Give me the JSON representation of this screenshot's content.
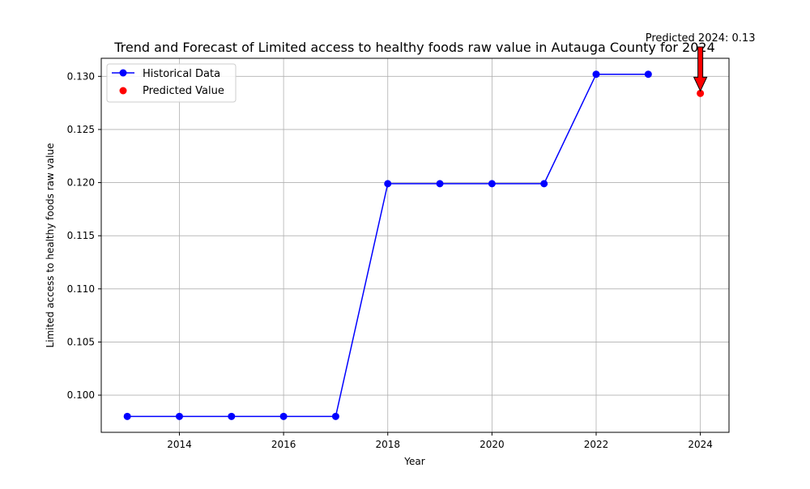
{
  "chart_data": {
    "type": "line",
    "title": "Trend and Forecast of Limited access to healthy foods raw value in Autauga County for 2024",
    "xlabel": "Year",
    "ylabel": "Limited access to healthy foods raw value",
    "xlim": [
      2012.5,
      2024.55
    ],
    "ylim": [
      0.0965,
      0.1317
    ],
    "x_ticks": [
      2014,
      2016,
      2018,
      2020,
      2022,
      2024
    ],
    "y_ticks": [
      0.1,
      0.105,
      0.11,
      0.115,
      0.12,
      0.125,
      0.13
    ],
    "x_tick_labels": [
      "2014",
      "2016",
      "2018",
      "2020",
      "2022",
      "2024"
    ],
    "y_tick_labels": [
      "0.100",
      "0.105",
      "0.110",
      "0.115",
      "0.120",
      "0.125",
      "0.130"
    ],
    "grid": true,
    "legend_position": "top-left",
    "series": [
      {
        "name": "Historical Data",
        "color": "#0000ff",
        "marker": "circle",
        "x": [
          2013,
          2014,
          2015,
          2016,
          2017,
          2018,
          2019,
          2020,
          2021,
          2022,
          2023
        ],
        "values": [
          0.098,
          0.098,
          0.098,
          0.098,
          0.098,
          0.1199,
          0.1199,
          0.1199,
          0.1199,
          0.1302,
          0.1302
        ]
      },
      {
        "name": "Predicted Value",
        "color": "#ff0000",
        "marker": "scatter",
        "x": [
          2024
        ],
        "values": [
          0.1284
        ]
      }
    ],
    "annotations": [
      {
        "text": "Predicted 2024: 0.13",
        "x": 2024,
        "y": 0.1284,
        "arrow_color": "#ff0000"
      }
    ]
  }
}
